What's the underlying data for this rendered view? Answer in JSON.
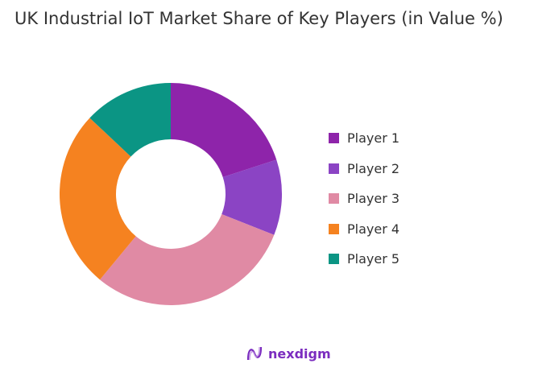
{
  "chart_data": {
    "type": "pie",
    "donut": true,
    "title": "UK Industrial IoT Market Share of Key Players (in Value %)",
    "categories": [
      "Player 1",
      "Player 2",
      "Player 3",
      "Player 4",
      "Player 5"
    ],
    "values": [
      20,
      11,
      30,
      26,
      13
    ],
    "colors": [
      "#8e24aa",
      "#8b44c4",
      "#e08aa4",
      "#f58220",
      "#0b9584"
    ],
    "legend_position": "right"
  },
  "brand": {
    "name": "nexdigm"
  }
}
